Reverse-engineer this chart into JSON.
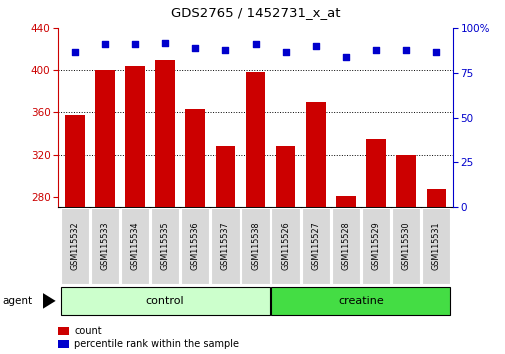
{
  "title": "GDS2765 / 1452731_x_at",
  "categories": [
    "GSM115532",
    "GSM115533",
    "GSM115534",
    "GSM115535",
    "GSM115536",
    "GSM115537",
    "GSM115538",
    "GSM115526",
    "GSM115527",
    "GSM115528",
    "GSM115529",
    "GSM115530",
    "GSM115531"
  ],
  "counts": [
    358,
    400,
    404,
    410,
    363,
    328,
    398,
    328,
    370,
    281,
    335,
    320,
    287
  ],
  "percentiles": [
    87,
    91,
    91,
    92,
    89,
    88,
    91,
    87,
    90,
    84,
    88,
    88,
    87
  ],
  "bar_color": "#cc0000",
  "dot_color": "#0000cc",
  "ylim_left": [
    270,
    440
  ],
  "ylim_right": [
    0,
    100
  ],
  "yticks_left": [
    280,
    320,
    360,
    400,
    440
  ],
  "yticks_right": [
    0,
    25,
    50,
    75,
    100
  ],
  "grid_lines": [
    320,
    360,
    400
  ],
  "groups": [
    {
      "label": "control",
      "indices": [
        0,
        1,
        2,
        3,
        4,
        5,
        6
      ],
      "color": "#ccffcc"
    },
    {
      "label": "creatine",
      "indices": [
        7,
        8,
        9,
        10,
        11,
        12
      ],
      "color": "#44dd44"
    }
  ],
  "agent_label": "agent",
  "legend_count_label": "count",
  "legend_percentile_label": "percentile rank within the sample",
  "tick_label_color_left": "#cc0000",
  "tick_label_color_right": "#0000cc",
  "bar_baseline": 270
}
